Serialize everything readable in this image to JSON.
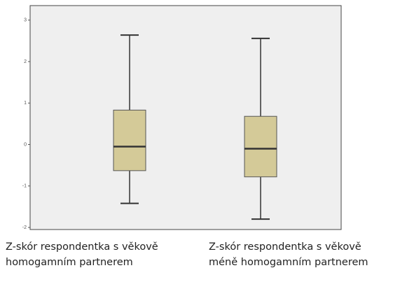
{
  "chart_data": {
    "type": "box",
    "categories": [
      "Z-skór respondentka s věkově homogamním partnerem",
      "Z-skór respondentka s věkově méně homogamním partnerem"
    ],
    "boxes": [
      {
        "min": -1.42,
        "q1": -0.63,
        "median": -0.05,
        "q3": 0.83,
        "max": 2.64
      },
      {
        "min": -1.8,
        "q1": -0.78,
        "median": -0.1,
        "q3": 0.68,
        "max": 2.56
      }
    ],
    "color": "#d4ca98",
    "ylim": [
      -2.05,
      3.35
    ],
    "yticks": [
      3,
      2,
      1,
      0,
      -1,
      -2
    ],
    "grid": false
  }
}
